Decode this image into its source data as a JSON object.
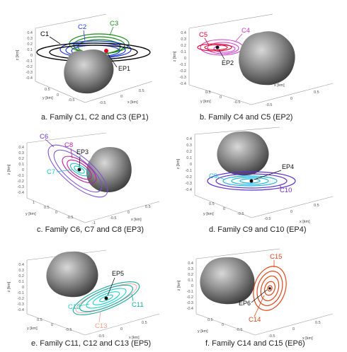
{
  "panels": [
    {
      "caption": "a. Family C1, C2 and C3 (EP1)",
      "z_label": "z [km]",
      "y_label": "y [km]",
      "x_label": "x [km]",
      "z_ticks": [
        "0.4",
        "0.3",
        "0.2",
        "0.1",
        "0",
        "-0.1",
        "-0.2",
        "-0.3",
        "-0.4"
      ],
      "y_ticks": [
        "0.5",
        "0",
        "-0.5"
      ],
      "x_ticks": [
        "-0.5",
        "0",
        "0.5"
      ],
      "families": [
        {
          "label": "C1",
          "color": "#000000"
        },
        {
          "label": "C2",
          "color": "#1f3fd6"
        },
        {
          "label": "C3",
          "color": "#1a8a1a"
        }
      ],
      "ep_label": "EP1"
    },
    {
      "caption": "b. Family C4 and C5 (EP2)",
      "z_label": "z [km]",
      "y_label": "y [km]",
      "x_label": "x [km]",
      "z_ticks": [
        "0.4",
        "0.3",
        "0.2",
        "0.1",
        "0",
        "-0.1",
        "-0.2",
        "-0.3",
        "-0.4"
      ],
      "y_ticks": [
        "0.5",
        "0",
        "-0.5"
      ],
      "x_ticks": [
        "-0.5",
        "0",
        "0.5"
      ],
      "families": [
        {
          "label": "C5",
          "color": "#e0002a"
        },
        {
          "label": "C4",
          "color": "#d23cd2"
        }
      ],
      "ep_label": "EP2"
    },
    {
      "caption": "c. Family C6, C7 and C8 (EP3)",
      "z_label": "z [km]",
      "y_label": "y [km]",
      "x_label": "x [km]",
      "z_ticks": [
        "0.4",
        "0.3",
        "0.2",
        "0.1",
        "0",
        "-0.1",
        "-0.2",
        "-0.3",
        "-0.4"
      ],
      "y_ticks": [
        "1",
        "0.5",
        "0",
        "-0.5"
      ],
      "x_ticks": [
        "-1",
        "-0.5",
        "0",
        "0.5"
      ],
      "families": [
        {
          "label": "C6",
          "color": "#6a2fc8"
        },
        {
          "label": "C8",
          "color": "#c01fa0"
        },
        {
          "label": "C7",
          "color": "#19c6c6"
        }
      ],
      "ep_label": "EP3"
    },
    {
      "caption": "d. Family C9 and C10 (EP4)",
      "z_label": "z [km]",
      "y_label": "y [km]",
      "x_label": "x [km]",
      "z_ticks": [
        "0.4",
        "0.3",
        "0.2",
        "0.1",
        "0",
        "-0.1",
        "-0.2",
        "-0.3",
        "-0.4"
      ],
      "y_ticks": [
        "0.5",
        "0",
        "-0.5"
      ],
      "x_ticks": [
        "-0.5",
        "0",
        "0.5"
      ],
      "families": [
        {
          "label": "C9",
          "color": "#19b6e0"
        },
        {
          "label": "C10",
          "color": "#6a2fc8"
        }
      ],
      "ep_label": "EP4"
    },
    {
      "caption": "e. Family C11, C12 and C13 (EP5)",
      "z_label": "z [km]",
      "y_label": "y [km]",
      "x_label": "x [km]",
      "z_ticks": [
        "0.4",
        "0.3",
        "0.2",
        "0.1",
        "0",
        "-0.1",
        "-0.2",
        "-0.3",
        "-0.4"
      ],
      "y_ticks": [
        "0.5",
        "0",
        "-0.5"
      ],
      "x_ticks": [
        "-0.5",
        "0",
        "0.5"
      ],
      "families": [
        {
          "label": "C11",
          "color": "#1aa8a0"
        },
        {
          "label": "C12",
          "color": "#1ad0c8"
        },
        {
          "label": "C13",
          "color": "#f0a090"
        }
      ],
      "ep_label": "EP5"
    },
    {
      "caption": "f. Family C14 and C15 (EP6)",
      "z_label": "z [km]",
      "y_label": "y [km]",
      "x_label": "x [km]",
      "z_ticks": [
        "0.4",
        "0.3",
        "0.2",
        "0.1",
        "0",
        "-0.1",
        "-0.2",
        "-0.3",
        "-0.4"
      ],
      "y_ticks": [
        "0.5",
        "0",
        "-0.5"
      ],
      "x_ticks": [
        "-0.5",
        "0",
        "0.5"
      ],
      "families": [
        {
          "label": "C15",
          "color": "#e0481a"
        },
        {
          "label": "C14",
          "color": "#e0481a"
        }
      ],
      "ep_label": "EP6"
    }
  ]
}
